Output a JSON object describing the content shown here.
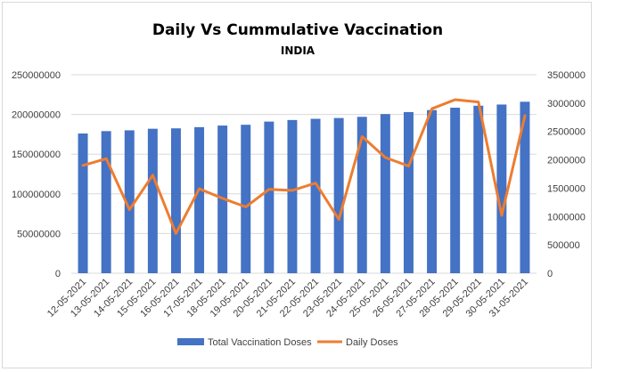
{
  "chart_data": {
    "type": "bar+line",
    "title": "Daily Vs Cummulative Vaccination",
    "subtitle": "INDIA",
    "categories": [
      "12-05-2021",
      "13-05-2021",
      "14-05-2021",
      "15-05-2021",
      "16-05-2021",
      "17-05-2021",
      "18-05-2021",
      "19-05-2021",
      "20-05-2021",
      "21-05-2021",
      "22-05-2021",
      "23-05-2021",
      "24-05-2021",
      "25-05-2021",
      "26-05-2021",
      "27-05-2021",
      "28-05-2021",
      "29-05-2021",
      "30-05-2021",
      "31-05-2021"
    ],
    "series": [
      {
        "name": "Total Vaccination Doses",
        "type": "bar",
        "axis": "left",
        "color": "#4472c4",
        "values": [
          176000000,
          179000000,
          180000000,
          182000000,
          182500000,
          184000000,
          186000000,
          187000000,
          191000000,
          193000000,
          194500000,
          195500000,
          197000000,
          200500000,
          203000000,
          205500000,
          208500000,
          211000000,
          212500000,
          216000000
        ]
      },
      {
        "name": "Daily Doses",
        "type": "line",
        "axis": "right",
        "color": "#ed7d31",
        "values": [
          1900000,
          2020000,
          1120000,
          1730000,
          700000,
          1490000,
          1320000,
          1170000,
          1480000,
          1460000,
          1590000,
          950000,
          2410000,
          2040000,
          1890000,
          2900000,
          3060000,
          3020000,
          1020000,
          2780000
        ]
      }
    ],
    "y_left": {
      "min": 0,
      "max": 250000000,
      "ticks": [
        "0",
        "50000000",
        "100000000",
        "150000000",
        "200000000",
        "250000000"
      ]
    },
    "y_right": {
      "min": 0,
      "max": 3500000,
      "ticks": [
        "0",
        "500000",
        "1000000",
        "1500000",
        "2000000",
        "2500000",
        "3000000",
        "3500000"
      ]
    },
    "grid": true,
    "legend_position": "bottom"
  }
}
